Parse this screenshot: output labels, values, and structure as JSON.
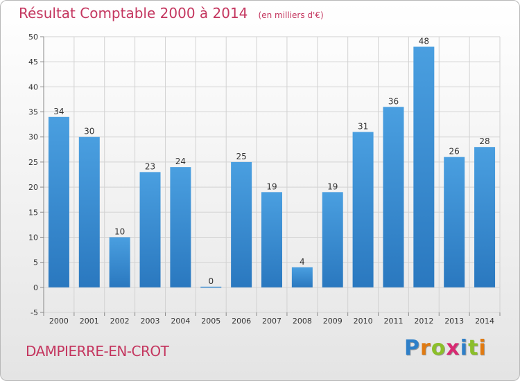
{
  "chart_data": {
    "type": "bar",
    "title": "Résultat Comptable 2000 à 2014",
    "subtitle": "(en milliers d'€)",
    "categories": [
      "2000",
      "2001",
      "2002",
      "2003",
      "2004",
      "2005",
      "2006",
      "2007",
      "2008",
      "2009",
      "2010",
      "2011",
      "2012",
      "2013",
      "2014"
    ],
    "values": [
      34,
      30,
      10,
      23,
      24,
      0,
      25,
      19,
      4,
      19,
      31,
      36,
      48,
      26,
      28
    ],
    "ylim": [
      -5,
      50
    ],
    "yticks": [
      -5,
      0,
      5,
      10,
      15,
      20,
      25,
      30,
      35,
      40,
      45,
      50
    ],
    "grid": true,
    "bar_color": "#4a9fe0",
    "bar_color_dark": "#2a78bf"
  },
  "commune": "DAMPIERRE-EN-CROT",
  "logo": {
    "letters": [
      "P",
      "r",
      "o",
      "x",
      "i",
      "t",
      "i"
    ],
    "colors": [
      "#2e7fc8",
      "#e07a12",
      "#8cbf2a",
      "#d82a72",
      "#2e7fc8",
      "#8cbf2a",
      "#e07a12"
    ]
  },
  "colors": {
    "accent": "#c4365f"
  }
}
